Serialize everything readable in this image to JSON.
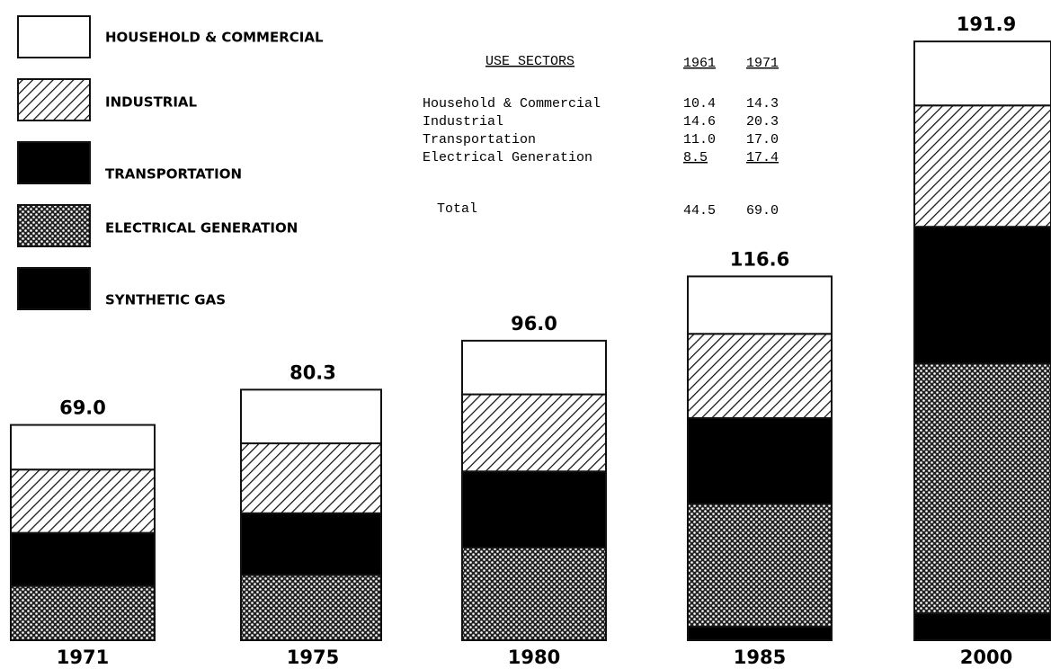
{
  "chart_data": {
    "type": "stacked-bar",
    "categories": [
      "1971",
      "1975",
      "1980",
      "1985",
      "2000"
    ],
    "series": [
      {
        "name": "HOUSEHOLD & COMMERCIAL",
        "color": "white",
        "values": [
          14.3,
          17.2,
          17.2,
          18.4,
          20.5
        ]
      },
      {
        "name": "INDUSTRIAL",
        "color": "hatch",
        "values": [
          20.3,
          22.4,
          24.7,
          27.0,
          38.9
        ]
      },
      {
        "name": "TRANSPORTATION",
        "color": "black",
        "values": [
          17.0,
          19.8,
          24.4,
          27.5,
          43.8
        ]
      },
      {
        "name": "ELECTRICAL GENERATION",
        "color": "dots",
        "values": [
          17.4,
          20.9,
          29.7,
          39.4,
          80.1
        ]
      },
      {
        "name": "SYNTHETIC GAS",
        "color": "black",
        "values": [
          0,
          0,
          0,
          4.3,
          8.6
        ]
      }
    ],
    "totals": [
      69.0,
      80.3,
      96.0,
      116.6,
      191.9
    ],
    "total_labels": [
      "69.0",
      "80.3",
      "96.0",
      "116.6",
      "191.9"
    ]
  },
  "table": {
    "title": "USE SECTORS",
    "columns": [
      "1961",
      "1971"
    ],
    "rows": [
      [
        "Household & Commercial",
        "10.4",
        "14.3"
      ],
      [
        "Industrial",
        "14.6",
        "20.3"
      ],
      [
        "Transportation",
        "11.0",
        "17.0"
      ],
      [
        "Electrical Generation",
        "8.5",
        "17.4"
      ]
    ],
    "total": [
      "Total",
      "44.5",
      "69.0"
    ]
  }
}
